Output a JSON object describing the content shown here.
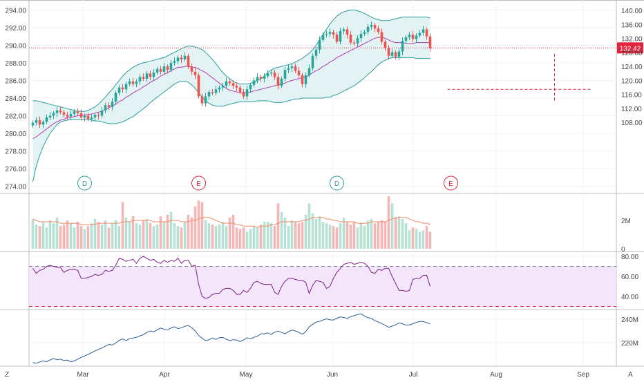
{
  "chart_data": {
    "type": "candlestick",
    "x_labels": [
      "Mar",
      "Apr",
      "May",
      "Jun",
      "Jul",
      "Aug",
      "Sep"
    ],
    "price_panel": {
      "left_axis": {
        "ticks": [
          274.0,
          276.0,
          278.0,
          280.0,
          282.0,
          284.0,
          286.0,
          288.0,
          290.0,
          292.0,
          294.0
        ],
        "labels": [
          "274.00",
          "276.00",
          "278.00",
          "280.00",
          "282.00",
          "284.00",
          "286.00",
          "288.00",
          "290.00",
          "292.00",
          "294.00"
        ],
        "ylim": [
          273.2,
          295.2
        ]
      },
      "right_axis": {
        "ticks": [
          108,
          112,
          116,
          120,
          124,
          128,
          132,
          136,
          140
        ],
        "labels": [
          "108.00",
          "112.00",
          "116.00",
          "120.00",
          "124.00",
          "128.00",
          "132.00",
          "136.00",
          "140.00"
        ]
      },
      "last_price": "132.42",
      "last_price_left_equiv": 289.7,
      "close": [
        281.2,
        281.5,
        281.0,
        281.3,
        281.8,
        282.0,
        282.3,
        282.6,
        282.4,
        282.1,
        281.9,
        282.2,
        282.5,
        282.3,
        281.8,
        282.0,
        281.6,
        281.8,
        282.1,
        282.0,
        282.6,
        283.2,
        283.0,
        283.6,
        284.6,
        285.2,
        285.0,
        285.6,
        285.9,
        285.6,
        285.9,
        286.4,
        286.2,
        286.8,
        286.4,
        286.9,
        287.3,
        287.0,
        287.6,
        287.2,
        288.0,
        288.2,
        288.6,
        288.4,
        288.8,
        287.6,
        287.0,
        286.6,
        284.2,
        283.4,
        284.2,
        284.7,
        284.6,
        285.0,
        285.2,
        285.4,
        285.9,
        285.7,
        285.4,
        285.2,
        284.7,
        284.2,
        285.0,
        285.5,
        286.0,
        286.4,
        286.2,
        286.5,
        286.8,
        286.9,
        286.4,
        285.4,
        286.2,
        287.2,
        287.4,
        287.6,
        287.1,
        286.6,
        285.6,
        286.6,
        287.4,
        288.8,
        289.5,
        290.6,
        291.2,
        291.3,
        291.5,
        291.2,
        290.4,
        291.6,
        291.8,
        291.2,
        290.3,
        290.2,
        290.8,
        291.3,
        291.5,
        292.1,
        292.3,
        291.9,
        291.5,
        290.4,
        289.7,
        288.8,
        289.2,
        288.7,
        289.3,
        290.5,
        290.9,
        291.2,
        290.7,
        291.1,
        291.4,
        291.8,
        291.0,
        289.7
      ],
      "open": [
        280.9,
        281.2,
        281.5,
        281.0,
        281.3,
        281.8,
        282.0,
        282.3,
        282.6,
        282.4,
        282.1,
        281.9,
        282.2,
        282.5,
        282.3,
        281.8,
        282.0,
        281.6,
        281.8,
        282.1,
        282.0,
        282.6,
        283.2,
        283.0,
        283.6,
        284.6,
        285.2,
        285.0,
        285.6,
        285.9,
        285.6,
        285.9,
        286.4,
        286.2,
        286.8,
        286.4,
        286.9,
        287.3,
        287.0,
        287.6,
        287.2,
        288.0,
        288.2,
        288.6,
        288.4,
        288.8,
        287.6,
        287.0,
        286.6,
        284.2,
        283.4,
        284.2,
        284.7,
        284.6,
        285.0,
        285.2,
        285.4,
        285.9,
        285.7,
        285.4,
        285.2,
        284.7,
        284.2,
        285.0,
        285.5,
        286.0,
        286.4,
        286.2,
        286.5,
        286.8,
        286.9,
        286.4,
        285.4,
        286.2,
        287.2,
        287.4,
        287.6,
        287.1,
        286.6,
        285.6,
        286.6,
        287.4,
        288.8,
        289.5,
        290.6,
        291.2,
        291.3,
        291.5,
        291.2,
        290.4,
        291.6,
        291.8,
        291.2,
        290.3,
        290.2,
        290.8,
        291.3,
        291.5,
        292.1,
        292.3,
        291.9,
        291.5,
        290.4,
        289.7,
        288.8,
        289.2,
        288.7,
        289.3,
        290.5,
        290.9,
        291.2,
        290.7,
        291.1,
        291.4,
        291.8,
        291.0
      ],
      "bollinger_upper": [
        283.7,
        283.7,
        283.6,
        283.5,
        283.4,
        283.3,
        283.2,
        283.1,
        283.0,
        282.9,
        282.8,
        282.7,
        282.6,
        282.5,
        282.5,
        282.5,
        282.6,
        282.8,
        283.0,
        283.3,
        283.7,
        284.1,
        284.6,
        285.0,
        285.5,
        286.0,
        286.5,
        286.9,
        287.2,
        287.5,
        287.7,
        287.9,
        288.0,
        288.1,
        288.2,
        288.3,
        288.4,
        288.5,
        288.6,
        288.8,
        289.0,
        289.2,
        289.4,
        289.6,
        289.8,
        289.9,
        289.9,
        289.8,
        289.7,
        289.5,
        289.2,
        288.8,
        288.4,
        287.9,
        287.4,
        286.9,
        286.5,
        286.2,
        285.9,
        285.7,
        285.6,
        285.6,
        285.6,
        285.7,
        285.8,
        286.0,
        286.2,
        286.5,
        286.9,
        287.2,
        287.4,
        287.5,
        287.6,
        287.7,
        287.8,
        287.9,
        288.1,
        288.3,
        288.5,
        288.8,
        289.1,
        289.5,
        290.0,
        290.6,
        291.2,
        291.8,
        292.4,
        292.9,
        293.3,
        293.6,
        293.8,
        293.9,
        294.0,
        294.0,
        293.9,
        293.8,
        293.6,
        293.4,
        293.2,
        293.0,
        292.9,
        292.8,
        292.8,
        292.8,
        292.9,
        293.0,
        293.1,
        293.2,
        293.2,
        293.2,
        293.2,
        293.2,
        293.2,
        293.2,
        293.2,
        293.1
      ],
      "bollinger_mid": [
        279.4,
        279.6,
        279.9,
        280.2,
        280.5,
        280.8,
        281.1,
        281.3,
        281.5,
        281.6,
        281.8,
        281.8,
        281.9,
        282.0,
        282.0,
        282.1,
        282.1,
        282.2,
        282.3,
        282.4,
        282.5,
        282.7,
        282.9,
        283.1,
        283.3,
        283.6,
        283.8,
        284.1,
        284.3,
        284.6,
        284.8,
        285.0,
        285.3,
        285.5,
        285.8,
        286.0,
        286.2,
        286.5,
        286.7,
        286.9,
        287.1,
        287.3,
        287.5,
        287.5,
        287.6,
        287.6,
        287.5,
        287.5,
        287.3,
        287.1,
        286.9,
        286.6,
        286.3,
        286.0,
        285.7,
        285.4,
        285.1,
        284.9,
        284.8,
        284.7,
        284.6,
        284.6,
        284.6,
        284.7,
        284.8,
        284.9,
        285.0,
        285.1,
        285.2,
        285.3,
        285.4,
        285.5,
        285.6,
        285.7,
        285.9,
        286.0,
        286.1,
        286.2,
        286.3,
        286.4,
        286.6,
        286.9,
        287.1,
        287.3,
        287.6,
        287.8,
        288.1,
        288.3,
        288.6,
        288.8,
        289.0,
        289.2,
        289.4,
        289.6,
        289.8,
        290.0,
        290.2,
        290.4,
        290.6,
        290.8,
        290.9,
        290.9,
        290.8,
        290.6,
        290.4,
        290.3,
        290.3,
        290.3,
        290.2,
        290.2,
        290.2,
        290.3,
        290.3,
        290.3,
        290.3,
        290.3
      ],
      "bollinger_lower": [
        274.5,
        276.3,
        277.5,
        278.5,
        279.3,
        280.0,
        280.5,
        281.0,
        281.3,
        281.4,
        281.5,
        281.6,
        281.6,
        281.6,
        281.6,
        281.6,
        281.6,
        281.5,
        281.4,
        281.4,
        281.3,
        281.2,
        281.1,
        281.1,
        281.1,
        281.2,
        281.3,
        281.5,
        281.7,
        281.9,
        282.2,
        282.5,
        282.8,
        283.1,
        283.5,
        283.8,
        284.1,
        284.4,
        284.7,
        285.0,
        285.3,
        285.6,
        285.8,
        285.9,
        285.9,
        285.8,
        285.5,
        285.1,
        284.6,
        284.1,
        283.7,
        283.4,
        283.2,
        283.1,
        283.1,
        283.1,
        283.2,
        283.3,
        283.4,
        283.5,
        283.6,
        283.6,
        283.6,
        283.6,
        283.6,
        283.7,
        283.7,
        283.7,
        283.7,
        283.6,
        283.5,
        283.5,
        283.5,
        283.6,
        283.7,
        283.8,
        283.9,
        283.9,
        284.0,
        284.0,
        284.0,
        284.0,
        284.0,
        284.0,
        284.0,
        284.1,
        284.1,
        284.3,
        284.4,
        284.6,
        284.8,
        285.0,
        285.2,
        285.4,
        285.7,
        286.0,
        286.3,
        286.7,
        287.0,
        287.4,
        287.8,
        288.1,
        288.3,
        288.5,
        288.6,
        288.6,
        288.6,
        288.6,
        288.6,
        288.6,
        288.6,
        288.5,
        288.5,
        288.5,
        288.5,
        288.5
      ],
      "markers": [
        {
          "label": "D",
          "bar_index": 15,
          "kind": "dividend"
        },
        {
          "label": "E",
          "bar_index": 48,
          "kind": "earnings"
        },
        {
          "label": "D",
          "bar_index": 88,
          "kind": "dividend"
        },
        {
          "label": "E",
          "bar_index": 121,
          "kind": "earnings"
        }
      ],
      "crosshair_bar_index": 151,
      "crosshair_left_value": 285.0
    },
    "volume_panel": {
      "right_axis": {
        "ticks": [
          0,
          2
        ],
        "labels": [
          "0",
          "2M"
        ],
        "ylim": [
          0,
          3.7
        ]
      },
      "values_millions": [
        2.1,
        1.7,
        1.6,
        1.9,
        1.5,
        2.0,
        1.8,
        2.2,
        1.6,
        1.7,
        2.0,
        1.8,
        1.5,
        1.9,
        1.6,
        1.4,
        1.6,
        1.8,
        2.1,
        1.9,
        1.7,
        2.0,
        1.5,
        1.8,
        2.0,
        1.6,
        3.3,
        2.2,
        1.9,
        2.3,
        1.8,
        1.7,
        2.0,
        2.1,
        1.8,
        1.6,
        1.7,
        2.3,
        1.9,
        2.4,
        2.6,
        1.8,
        1.6,
        1.5,
        1.9,
        2.4,
        2.2,
        3.0,
        3.4,
        3.3,
        2.0,
        1.8,
        1.7,
        1.6,
        1.7,
        1.9,
        1.6,
        2.2,
        2.4,
        1.5,
        1.4,
        1.5,
        1.2,
        1.4,
        1.6,
        1.5,
        1.7,
        1.9,
        1.9,
        1.8,
        1.6,
        3.2,
        2.6,
        2.2,
        1.6,
        2.0,
        1.9,
        1.8,
        1.9,
        2.4,
        3.2,
        2.5,
        2.1,
        2.3,
        1.9,
        1.8,
        1.7,
        1.6,
        1.5,
        1.8,
        2.2,
        1.9,
        1.7,
        1.9,
        1.5,
        1.8,
        1.6,
        2.0,
        2.1,
        1.8,
        1.9,
        2.0,
        1.9,
        3.7,
        3.2,
        2.2,
        2.3,
        2.1,
        1.8,
        1.3,
        1.5,
        1.4,
        1.2,
        1.3,
        1.6,
        1.2
      ],
      "volume_ma_millions": [
        2.1,
        2.0,
        1.9,
        1.9,
        1.9,
        1.9,
        1.9,
        1.9,
        1.8,
        1.8,
        1.8,
        1.8,
        1.8,
        1.8,
        1.7,
        1.7,
        1.7,
        1.7,
        1.7,
        1.8,
        1.8,
        1.8,
        1.8,
        1.8,
        1.8,
        1.8,
        1.9,
        1.9,
        1.9,
        2.0,
        2.0,
        2.0,
        2.0,
        2.0,
        2.0,
        1.9,
        1.9,
        1.9,
        1.9,
        1.9,
        2.0,
        2.0,
        2.0,
        1.9,
        1.9,
        1.9,
        2.0,
        2.0,
        2.1,
        2.2,
        2.2,
        2.2,
        2.1,
        2.0,
        1.9,
        1.8,
        1.8,
        1.8,
        1.8,
        1.7,
        1.7,
        1.6,
        1.6,
        1.6,
        1.6,
        1.5,
        1.6,
        1.6,
        1.6,
        1.7,
        1.7,
        1.8,
        1.9,
        1.9,
        1.9,
        1.9,
        1.9,
        1.9,
        2.0,
        2.0,
        2.1,
        2.2,
        2.2,
        2.2,
        2.2,
        2.1,
        2.1,
        2.0,
        2.0,
        1.9,
        1.9,
        1.9,
        1.9,
        1.9,
        1.8,
        1.8,
        1.8,
        1.8,
        1.9,
        1.9,
        1.9,
        1.9,
        1.9,
        2.0,
        2.1,
        2.2,
        2.2,
        2.2,
        2.2,
        2.1,
        2.0,
        1.9,
        1.9,
        1.8,
        1.8,
        1.7
      ]
    },
    "rsi_panel": {
      "right_axis": {
        "ticks": [
          40,
          60,
          80
        ],
        "labels": [
          "40.00",
          "60.00",
          "80.00"
        ],
        "ylim": [
          30,
          82
        ]
      },
      "upper_band": 70,
      "lower_band": 30,
      "values": [
        68,
        63,
        66,
        67,
        70,
        71,
        70,
        69,
        69,
        64,
        66,
        67,
        67,
        66,
        58,
        58,
        59,
        60,
        62,
        61,
        62,
        66,
        65,
        66,
        71,
        78,
        77,
        75,
        76,
        77,
        73,
        78,
        80,
        78,
        76,
        77,
        74,
        73,
        76,
        74,
        76,
        75,
        78,
        73,
        76,
        76,
        70,
        71,
        52,
        40,
        38,
        39,
        42,
        43,
        43,
        47,
        48,
        48,
        46,
        42,
        42,
        46,
        44,
        48,
        54,
        55,
        53,
        52,
        52,
        52,
        44,
        42,
        50,
        55,
        58,
        58,
        57,
        56,
        56,
        54,
        43,
        51,
        56,
        55,
        54,
        48,
        50,
        58,
        64,
        68,
        72,
        73,
        74,
        72,
        73,
        74,
        73,
        70,
        64,
        63,
        67,
        66,
        68,
        68,
        60,
        53,
        46,
        46,
        45,
        46,
        57,
        58,
        58,
        61,
        61,
        50
      ]
    },
    "obv_panel": {
      "right_axis": {
        "ticks": [
          220,
          240
        ],
        "labels": [
          "220M",
          "240M"
        ],
        "ylim": [
          201,
          248
        ]
      },
      "values": [
        203.0,
        202.5,
        203.5,
        204.5,
        203.8,
        205.3,
        206.5,
        205.5,
        206.0,
        204.8,
        205.2,
        203.8,
        204.5,
        206.0,
        207.5,
        208.8,
        210.0,
        211.5,
        213.0,
        214.3,
        215.5,
        217.0,
        218.5,
        218.0,
        219.8,
        222.0,
        223.2,
        221.8,
        223.5,
        224.0,
        224.6,
        225.8,
        226.8,
        228.8,
        230.0,
        229.2,
        231.0,
        232.5,
        231.5,
        230.8,
        232.5,
        233.6,
        232.0,
        232.6,
        234.0,
        234.6,
        232.8,
        230.0,
        226.2,
        223.8,
        221.8,
        222.5,
        224.0,
        222.8,
        224.3,
        224.5,
        223.0,
        221.7,
        222.6,
        222.2,
        221.0,
        222.4,
        224.2,
        223.4,
        224.6,
        225.5,
        227.6,
        227.6,
        228.4,
        227.0,
        229.0,
        229.8,
        228.7,
        227.6,
        229.4,
        230.8,
        230.0,
        228.8,
        227.2,
        229.5,
        233.4,
        235.7,
        237.5,
        238.2,
        239.3,
        240.3,
        239.5,
        239.3,
        240.8,
        242.0,
        241.5,
        240.7,
        242.1,
        243.0,
        244.0,
        244.6,
        242.7,
        241.3,
        240.6,
        238.8,
        237.7,
        236.3,
        234.8,
        233.1,
        234.1,
        235.2,
        236.8,
        236.1,
        234.9,
        235.2,
        236.1,
        237.3,
        238.1,
        238.1,
        237.1,
        236.1
      ]
    }
  },
  "ui": {
    "bottom_left_icon": "Z",
    "bottom_right_icon": "A",
    "colors": {
      "up": "#26a69a",
      "down": "#ef5350",
      "accent": "#e3233b",
      "bb": "#2a9d9a",
      "bb_fill": "#e3f3f3",
      "mid": "#b23ab2",
      "rsi": "#7e1f86",
      "rsi_fill": "#f3e5fa",
      "obv": "#2b5d95",
      "vol_ma": "#f08a68",
      "vol_up": "#b6e1d4",
      "vol_down": "#f5b7b6"
    }
  }
}
